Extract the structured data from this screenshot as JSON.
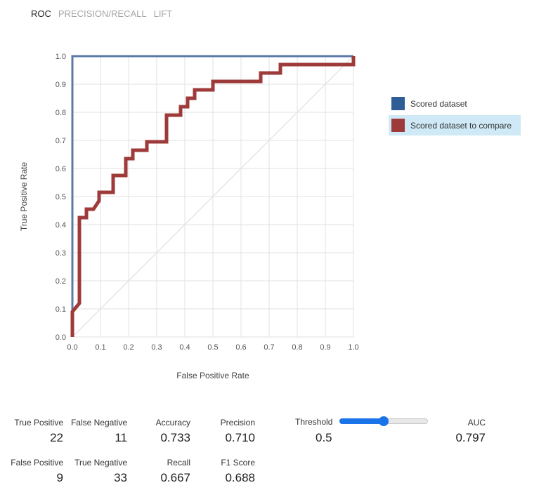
{
  "tabs": [
    {
      "label": "ROC",
      "active": true
    },
    {
      "label": "PRECISION/RECALL",
      "active": false
    },
    {
      "label": "LIFT",
      "active": false
    }
  ],
  "chart_data": {
    "type": "line",
    "xlabel": "False Positive Rate",
    "ylabel": "True Positive Rate",
    "xlim": [
      0,
      1
    ],
    "ylim": [
      0,
      1
    ],
    "xticks": [
      "0.0",
      "0.1",
      "0.2",
      "0.3",
      "0.4",
      "0.5",
      "0.6",
      "0.7",
      "0.8",
      "0.9",
      "1.0"
    ],
    "yticks": [
      "0.0",
      "0.1",
      "0.2",
      "0.3",
      "0.4",
      "0.5",
      "0.6",
      "0.7",
      "0.8",
      "0.9",
      "1.0"
    ],
    "grid": true,
    "legend_position": "right",
    "diagonal_reference": true,
    "series": [
      {
        "name": "Scored dataset",
        "color": "#5b7aa8",
        "legend_color": "#2f5d96",
        "points": [
          [
            0,
            0
          ],
          [
            0,
            1
          ],
          [
            1,
            1
          ]
        ]
      },
      {
        "name": "Scored dataset to compare",
        "color": "#9e3a3a",
        "legend_color": "#9e3a3a",
        "highlighted": true,
        "points": [
          [
            0,
            0
          ],
          [
            0,
            0.09
          ],
          [
            0.025,
            0.12
          ],
          [
            0.025,
            0.425
          ],
          [
            0.05,
            0.425
          ],
          [
            0.05,
            0.455
          ],
          [
            0.075,
            0.455
          ],
          [
            0.095,
            0.485
          ],
          [
            0.095,
            0.515
          ],
          [
            0.145,
            0.515
          ],
          [
            0.145,
            0.575
          ],
          [
            0.19,
            0.575
          ],
          [
            0.19,
            0.635
          ],
          [
            0.215,
            0.635
          ],
          [
            0.215,
            0.665
          ],
          [
            0.265,
            0.665
          ],
          [
            0.265,
            0.695
          ],
          [
            0.335,
            0.695
          ],
          [
            0.335,
            0.79
          ],
          [
            0.385,
            0.79
          ],
          [
            0.385,
            0.82
          ],
          [
            0.41,
            0.82
          ],
          [
            0.41,
            0.85
          ],
          [
            0.435,
            0.85
          ],
          [
            0.435,
            0.88
          ],
          [
            0.5,
            0.88
          ],
          [
            0.5,
            0.91
          ],
          [
            0.67,
            0.91
          ],
          [
            0.67,
            0.94
          ],
          [
            0.74,
            0.94
          ],
          [
            0.74,
            0.97
          ],
          [
            1,
            0.97
          ],
          [
            1,
            1
          ]
        ]
      }
    ]
  },
  "metrics": {
    "true_positive": {
      "label": "True Positive",
      "value": "22"
    },
    "false_negative": {
      "label": "False Negative",
      "value": "11"
    },
    "accuracy": {
      "label": "Accuracy",
      "value": "0.733"
    },
    "precision": {
      "label": "Precision",
      "value": "0.710"
    },
    "false_positive": {
      "label": "False Positive",
      "value": "9"
    },
    "true_negative": {
      "label": "True Negative",
      "value": "33"
    },
    "recall": {
      "label": "Recall",
      "value": "0.667"
    },
    "f1": {
      "label": "F1 Score",
      "value": "0.688"
    },
    "auc": {
      "label": "AUC",
      "value": "0.797"
    }
  },
  "threshold": {
    "label": "Threshold",
    "value": "0.5",
    "fraction": 0.5,
    "accent": "#1a73e8"
  }
}
